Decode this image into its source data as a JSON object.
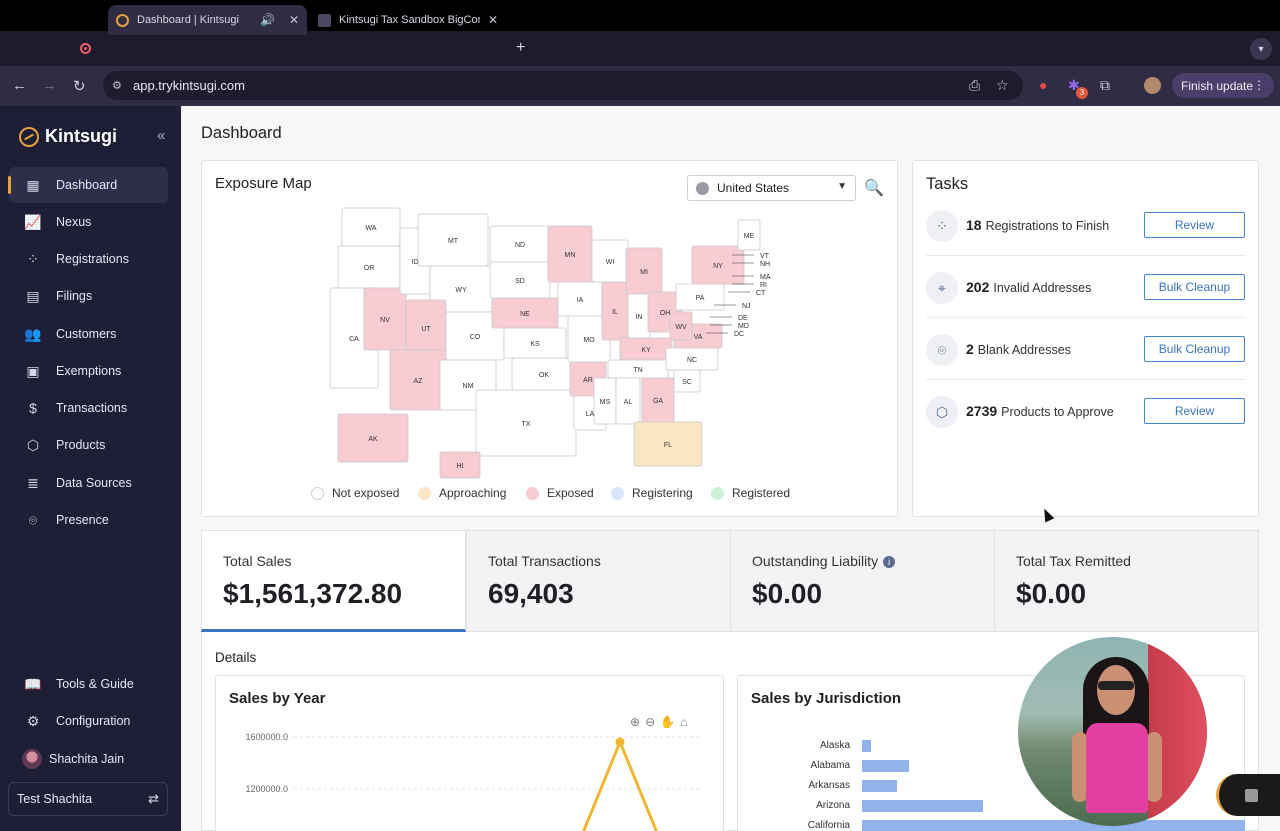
{
  "browser": {
    "tabs": [
      {
        "title": "Dashboard | Kintsugi",
        "active": true
      },
      {
        "title": "Kintsugi Tax Sandbox BigCom",
        "active": false
      }
    ],
    "url": "app.trykintsugi.com",
    "finish_update_label": "Finish update",
    "extension_badge": "3"
  },
  "sidebar": {
    "brand": "Kintsugi",
    "items": [
      {
        "label": "Dashboard",
        "icon": "grid-icon",
        "active": true
      },
      {
        "label": "Nexus",
        "icon": "trend-chart-icon"
      },
      {
        "label": "Registrations",
        "icon": "dots-pattern-icon"
      },
      {
        "label": "Filings",
        "icon": "document-icon"
      },
      {
        "label": "Customers",
        "icon": "people-icon"
      },
      {
        "label": "Exemptions",
        "icon": "exemption-icon"
      },
      {
        "label": "Transactions",
        "icon": "dollar-doc-icon"
      },
      {
        "label": "Products",
        "icon": "box-icon"
      },
      {
        "label": "Data Sources",
        "icon": "database-icon"
      },
      {
        "label": "Presence",
        "icon": "location-pin-icon"
      }
    ],
    "bottom_items": [
      {
        "label": "Tools & Guide",
        "icon": "book-icon"
      },
      {
        "label": "Configuration",
        "icon": "gear-icon"
      }
    ],
    "user_name": "Shachita Jain",
    "org_name": "Test Shachita"
  },
  "page": {
    "title": "Dashboard"
  },
  "exposure_map": {
    "title": "Exposure Map",
    "country": "United States",
    "state_labels": [
      "WA",
      "OR",
      "CA",
      "NV",
      "ID",
      "MT",
      "WY",
      "UT",
      "AZ",
      "CO",
      "NM",
      "ND",
      "SD",
      "NE",
      "KS",
      "OK",
      "TX",
      "MN",
      "IA",
      "MO",
      "AR",
      "LA",
      "WI",
      "IL",
      "MI",
      "IN",
      "OH",
      "KY",
      "TN",
      "MS",
      "AL",
      "GA",
      "FL",
      "SC",
      "NC",
      "VA",
      "WV",
      "PA",
      "NY",
      "ME",
      "VT",
      "NH",
      "MA",
      "RI",
      "CT",
      "NJ",
      "DE",
      "MD",
      "DC",
      "AK",
      "HI"
    ],
    "exposed_states": [
      "NV",
      "UT",
      "AZ",
      "NE",
      "MN",
      "AR",
      "IL",
      "MI",
      "OH",
      "KY",
      "WV",
      "VA",
      "GA",
      "NY",
      "AK",
      "HI"
    ],
    "approaching_states": [
      "FL"
    ],
    "colors": {
      "not_exposed": "#ffffff",
      "approaching": "#fbe6c3",
      "exposed": "#f7cdd3",
      "registering": "#d7e6fb",
      "registered": "#cdf2d5"
    },
    "legend": [
      {
        "label": "Not exposed",
        "color": "#ffffff"
      },
      {
        "label": "Approaching",
        "color": "#fbe6c3"
      },
      {
        "label": "Exposed",
        "color": "#f7cdd3"
      },
      {
        "label": "Registering",
        "color": "#d7e6fb"
      },
      {
        "label": "Registered",
        "color": "#cdf2d5"
      }
    ]
  },
  "tasks": {
    "title": "Tasks",
    "items": [
      {
        "count": "18",
        "label": "Registrations to Finish",
        "button": "Review",
        "icon": "dots-pattern-icon"
      },
      {
        "count": "202",
        "label": "Invalid Addresses",
        "button": "Bulk Cleanup",
        "icon": "location-search-icon"
      },
      {
        "count": "2",
        "label": "Blank Addresses",
        "button": "Bulk Cleanup",
        "icon": "location-pin-icon"
      },
      {
        "count": "2739",
        "label": "Products to Approve",
        "button": "Review",
        "icon": "box-icon"
      }
    ]
  },
  "kpis": [
    {
      "label": "Total Sales",
      "value": "$1,561,372.80",
      "selected": true
    },
    {
      "label": "Total Transactions",
      "value": "69,403"
    },
    {
      "label": "Outstanding Liability",
      "value": "$0.00",
      "info": true
    },
    {
      "label": "Total Tax Remitted",
      "value": "$0.00"
    }
  ],
  "details": {
    "title": "Details",
    "sales_by_year": {
      "title": "Sales by Year",
      "y_ticks": [
        "1600000.0",
        "1200000.0"
      ]
    },
    "sales_by_jurisdiction": {
      "title": "Sales by Jurisdiction"
    }
  },
  "chart_data": [
    {
      "type": "line",
      "title": "Sales by Year",
      "ylim": [
        1000000,
        1600000
      ],
      "y_ticks": [
        1600000,
        1200000
      ],
      "series": [
        {
          "values": [
            1561372.8
          ]
        }
      ]
    },
    {
      "type": "bar",
      "orientation": "horizontal",
      "title": "Sales by Jurisdiction",
      "categories": [
        "Alaska",
        "Alabama",
        "Arkansas",
        "Arizona",
        "California"
      ],
      "values": [
        8,
        42,
        31,
        107,
        340
      ],
      "scale_max": 340
    }
  ]
}
